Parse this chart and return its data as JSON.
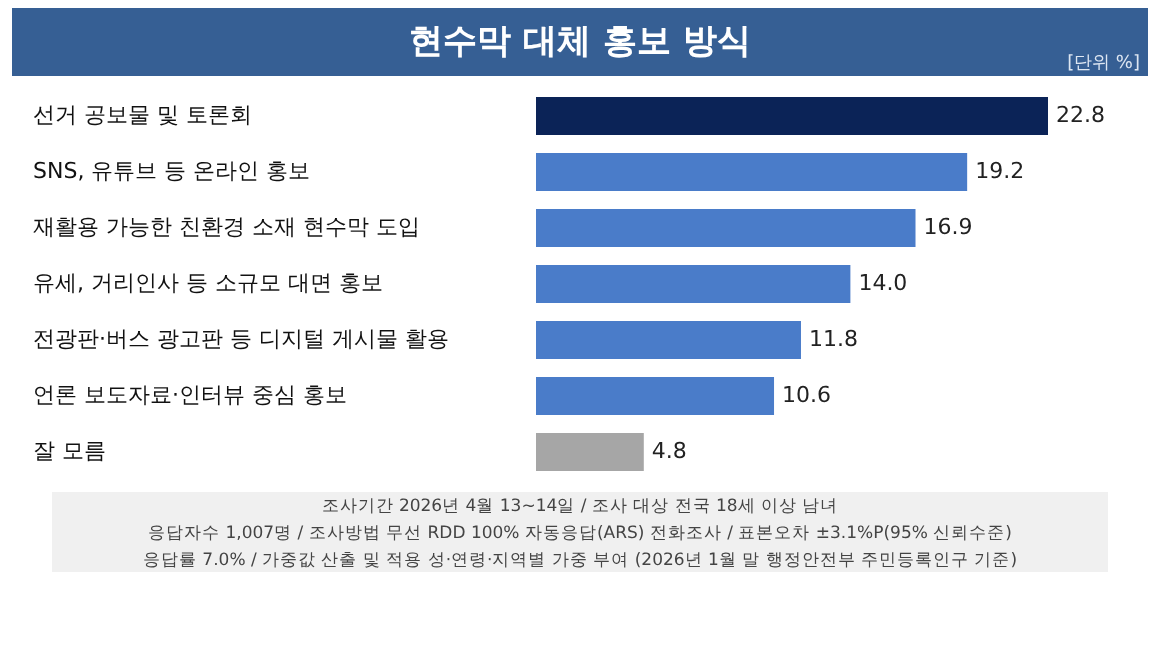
{
  "chart_data": {
    "type": "bar",
    "orientation": "horizontal",
    "title": "현수막 대체 홍보 방식",
    "categories": [
      "선거 공보물 및 토론회",
      "SNS, 유튜브 등 온라인 홍보",
      "재활용 가능한 친환경 소재 현수막 도입",
      "유세, 거리인사 등 소규모 대면 홍보",
      "전광판·버스 광고판 등 디지털 게시물 활용",
      "언론 보도자료·인터뷰 중심 홍보",
      "잘 모름"
    ],
    "values": [
      22.8,
      19.2,
      16.9,
      14.0,
      11.8,
      10.6,
      4.8
    ],
    "value_labels": [
      "22.8",
      "19.2",
      "16.9",
      "14.0",
      "11.8",
      "10.6",
      "4.8"
    ],
    "colors": [
      "#0b2357",
      "#4a7cc9",
      "#4a7cc9",
      "#4a7cc9",
      "#4a7cc9",
      "#4a7cc9",
      "#a6a6a6"
    ],
    "annotations": [
      "[단위 %]",
      "조사기간 2026년 4월 13~14일 / 조사 대상 전국 18세 이상 남녀",
      "응답자수 1,007명 / 조사방법 무선 RDD 100% 자동응답(ARS) 전화조사 / 표본오차 ±3.1%P(95% 신뢰수준)",
      "응답률 7.0% / 가중값 산출 및 적용 성·연령·지역별 가중 부여 (2026년 1월 말 행정안전부 주민등록인구 기준)"
    ],
    "grid": false,
    "legend": false
  }
}
